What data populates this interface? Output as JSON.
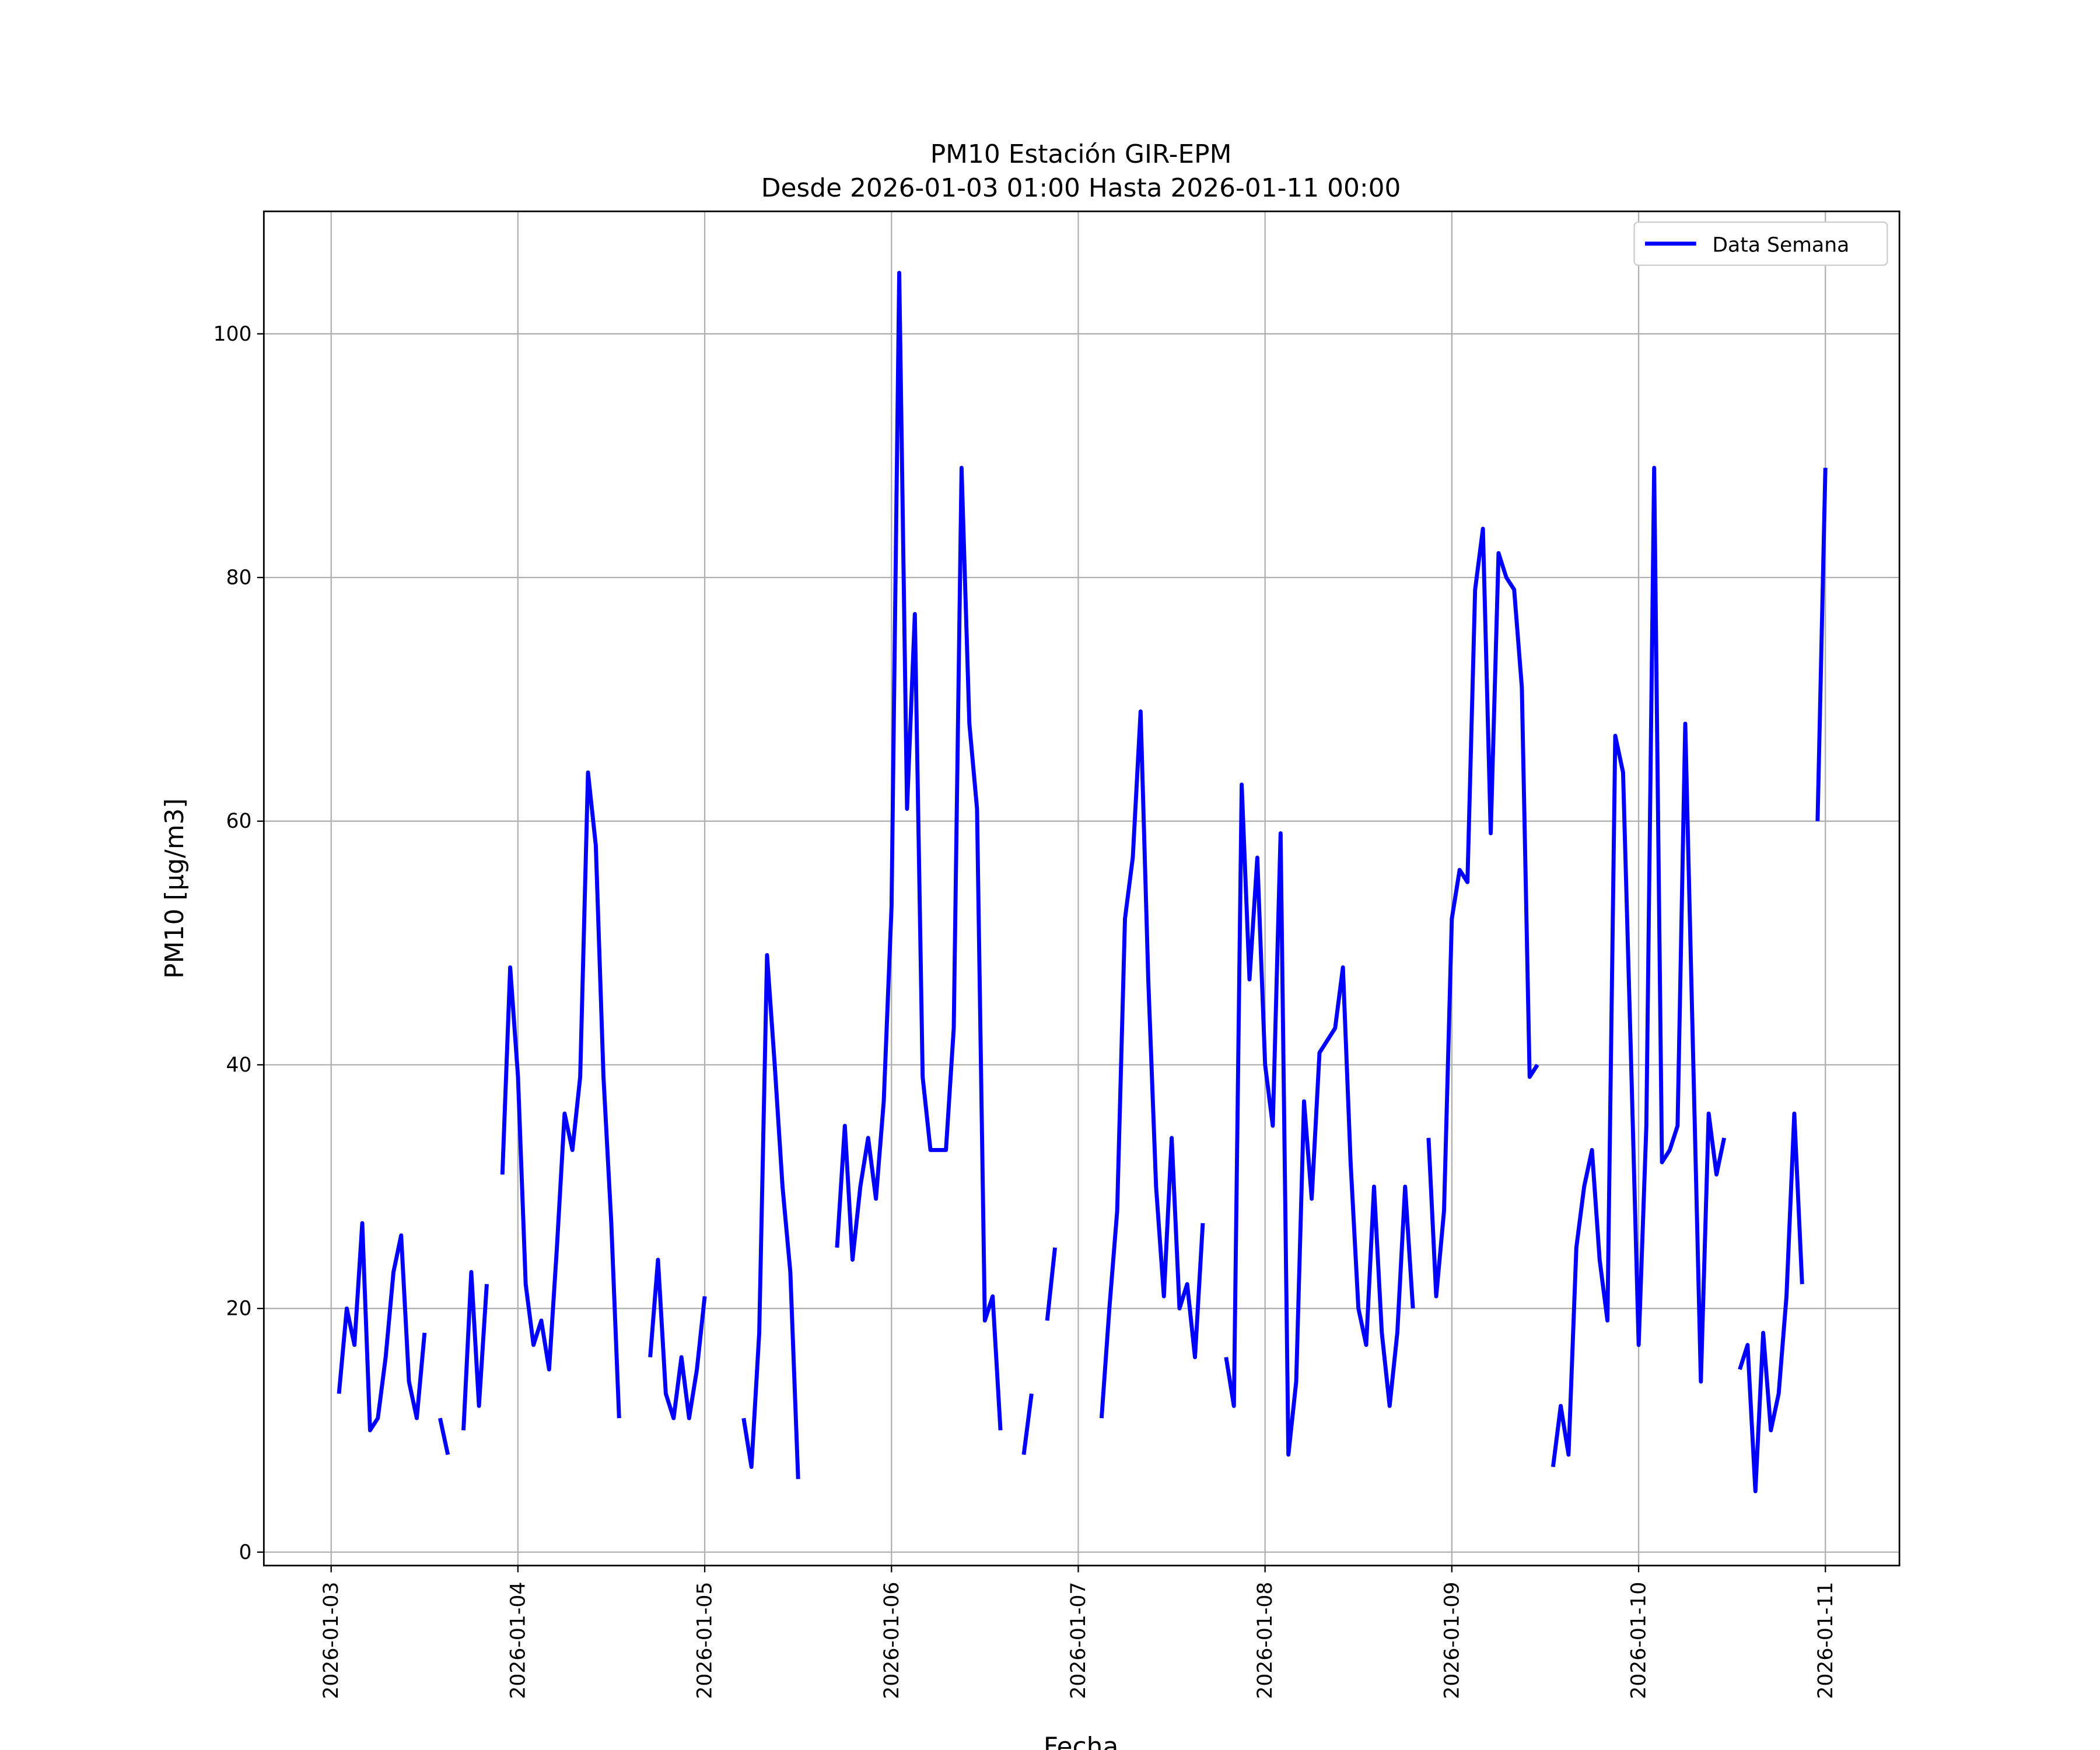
{
  "chart_data": {
    "type": "line",
    "title": "PM10 Estación GIR-EPM",
    "subtitle": "Desde 2026-01-03 01:00 Hasta 2026-01-11 00:00",
    "xlabel": "Fecha",
    "ylabel": "PM10 [μg/m3]",
    "ylim": [
      -1,
      110
    ],
    "xlim_hours": [
      -9,
      200
    ],
    "grid": true,
    "legend_position": "top-right",
    "x_start": "2026-01-03 00:00",
    "x_step": "1 hour",
    "x_tick_labels": [
      "2026-01-03",
      "2026-01-04",
      "2026-01-05",
      "2026-01-06",
      "2026-01-07",
      "2026-01-08",
      "2026-01-09",
      "2026-01-10",
      "2026-01-11"
    ],
    "y_ticks": [
      0,
      20,
      40,
      60,
      80,
      100
    ],
    "series": [
      {
        "name": "Data Semana",
        "color": "#0000ff",
        "values": [
          13,
          20,
          17,
          27,
          10,
          11,
          16,
          23,
          26,
          14,
          11,
          18,
          null,
          11,
          8,
          null,
          10,
          23,
          12,
          22,
          null,
          31,
          48,
          39,
          22,
          17,
          19,
          15,
          25,
          36,
          33,
          39,
          64,
          58,
          39,
          27,
          11,
          null,
          null,
          null,
          16,
          24,
          13,
          11,
          16,
          11,
          15,
          21,
          null,
          null,
          null,
          null,
          11,
          7,
          18,
          49,
          40,
          30,
          23,
          6,
          null,
          null,
          null,
          null,
          25,
          35,
          24,
          30,
          34,
          29,
          37,
          53,
          105,
          61,
          77,
          39,
          33,
          33,
          33,
          43,
          89,
          68,
          61,
          19,
          21,
          10,
          null,
          null,
          8,
          13,
          null,
          19,
          25,
          null,
          null,
          null,
          null,
          null,
          11,
          20,
          28,
          52,
          57,
          69,
          47,
          30,
          21,
          34,
          20,
          22,
          16,
          27,
          null,
          null,
          16,
          12,
          63,
          47,
          57,
          40,
          35,
          59,
          8,
          14,
          37,
          29,
          41,
          42,
          43,
          48,
          32,
          20,
          17,
          30,
          18,
          12,
          18,
          30,
          20,
          null,
          34,
          21,
          28,
          52,
          56,
          55,
          79,
          84,
          59,
          82,
          80,
          79,
          71,
          39,
          40,
          null,
          7,
          12,
          8,
          25,
          30,
          33,
          24,
          19,
          67,
          64,
          41,
          17,
          35,
          89,
          32,
          33,
          35,
          68,
          41,
          14,
          36,
          31,
          34,
          null,
          15,
          17,
          5,
          18,
          10,
          13,
          21,
          36,
          22,
          null,
          60,
          89
        ]
      }
    ]
  }
}
